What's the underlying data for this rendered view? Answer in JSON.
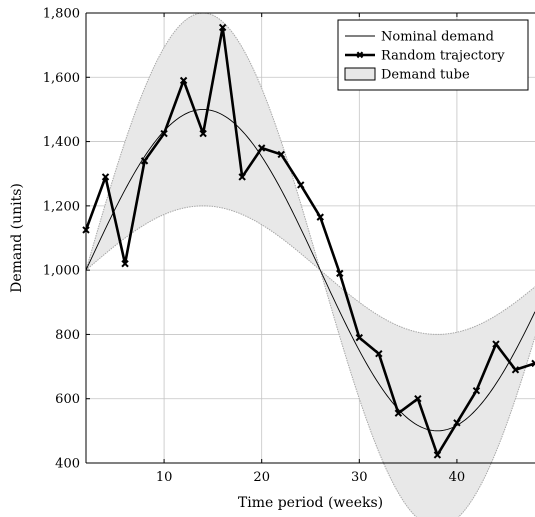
{
  "chart_data": {
    "type": "line",
    "xlabel": "Time period (weeks)",
    "ylabel": "Demand (units)",
    "xlim": [
      2,
      48
    ],
    "ylim": [
      400,
      1800
    ],
    "xticks": [
      10,
      20,
      30,
      40
    ],
    "xtick_labels": [
      "10",
      "20",
      "30",
      "40"
    ],
    "yticks": [
      400,
      600,
      800,
      1000,
      1200,
      1400,
      1600,
      1800
    ],
    "ytick_labels": [
      "400",
      "600",
      "800",
      "1,000",
      "1,200",
      "1,400",
      "1,600",
      "1,800"
    ],
    "grid": true,
    "legend": {
      "placement": "top-right",
      "entries": [
        "Nominal demand",
        "Random trajectory",
        "Demand tube"
      ]
    },
    "nominal": {
      "name": "Nominal demand",
      "function": "1000 + 500*sin(2*pi*(t-2)/48)",
      "color": "#000000"
    },
    "tube": {
      "name": "Demand tube",
      "lower_function": "1000 + 200*sin(2*pi*(t-2)/48)",
      "upper_function": "1000 + 800*sin(2*pi*(t-2)/48)",
      "fill_color": "#e8e8e8",
      "edge_color": "#a8a8a8"
    },
    "trajectory": {
      "name": "Random trajectory",
      "color": "#000000",
      "x": [
        2,
        4,
        6,
        8,
        10,
        12,
        14,
        16,
        18,
        20,
        22,
        24,
        26,
        28,
        30,
        32,
        34,
        36,
        38,
        40,
        42,
        44,
        46,
        48
      ],
      "y": [
        1125,
        1290,
        1020,
        1340,
        1425,
        1590,
        1425,
        1755,
        1290,
        1380,
        1360,
        1265,
        1165,
        990,
        790,
        740,
        555,
        600,
        425,
        525,
        625,
        770,
        690,
        710
      ]
    }
  }
}
